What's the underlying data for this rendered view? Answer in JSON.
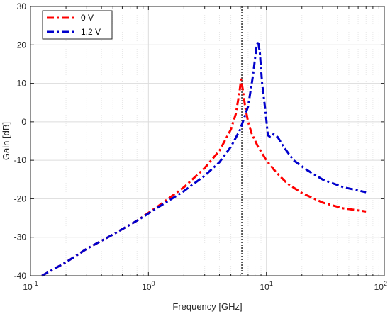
{
  "chart_data": {
    "type": "line",
    "xscale": "log",
    "xlim": [
      0.1,
      100
    ],
    "ylim": [
      -40,
      30
    ],
    "xlabel": "Frequency [GHz]",
    "ylabel": "Gain [dB]",
    "grid": true,
    "legend_position": "top-left",
    "x_tick_labels": [
      {
        "base": "10",
        "exp": "-1"
      },
      {
        "base": "10",
        "exp": "0"
      },
      {
        "base": "10",
        "exp": "1"
      },
      {
        "base": "10",
        "exp": "2"
      }
    ],
    "y_ticks": [
      "-40",
      "-30",
      "-20",
      "-10",
      "0",
      "10",
      "20",
      "30"
    ],
    "vertical_line_x": 6.2,
    "series": [
      {
        "name": "0 V",
        "color": "#ff0000",
        "x": [
          0.125,
          0.2,
          0.3,
          0.5,
          0.8,
          1.2,
          2.0,
          3.0,
          4.0,
          5.0,
          5.5,
          5.9,
          6.1,
          6.3,
          6.6,
          7.0,
          7.5,
          8.5,
          10,
          12,
          15,
          20,
          30,
          45,
          70
        ],
        "y": [
          -40,
          -36.5,
          -33,
          -29.3,
          -25.7,
          -22,
          -17,
          -12,
          -7.5,
          -2,
          2,
          7.5,
          11,
          8.5,
          4,
          0,
          -3,
          -6.5,
          -10,
          -13,
          -16,
          -18.5,
          -21,
          -22.5,
          -23.3
        ]
      },
      {
        "name": "1.2 V",
        "color": "#0000cc",
        "x": [
          0.125,
          0.2,
          0.3,
          0.5,
          0.8,
          1.2,
          2.0,
          3.0,
          4.0,
          5.0,
          6.0,
          7.0,
          7.7,
          8.2,
          8.5,
          8.8,
          9.2,
          9.8,
          10.3,
          10.8,
          11.5,
          12.5,
          14,
          17,
          22,
          30,
          45,
          70
        ],
        "y": [
          -40,
          -36.5,
          -33,
          -29.3,
          -25.7,
          -22.3,
          -18,
          -14,
          -10.5,
          -6.5,
          -2,
          4,
          12,
          19,
          21,
          18,
          10,
          3,
          -3.5,
          -4,
          -3.2,
          -4,
          -6.5,
          -10,
          -12.5,
          -15,
          -17,
          -18.3
        ]
      }
    ]
  }
}
